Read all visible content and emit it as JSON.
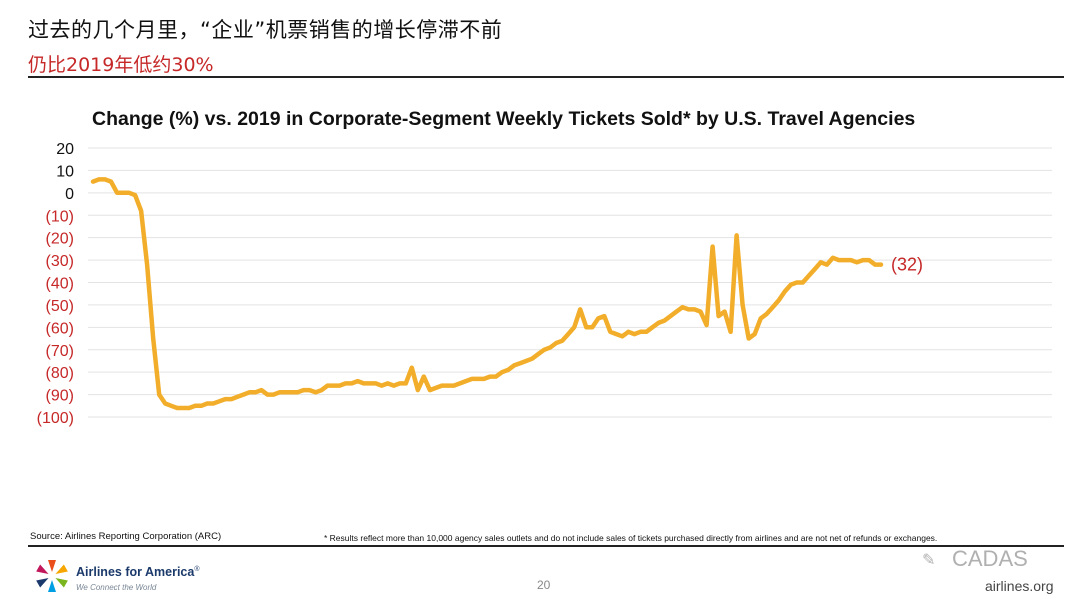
{
  "header": {
    "title": "过去的几个月里，“企业”机票销售的增长停滞不前",
    "subtitle": "仍比2019年低约30%"
  },
  "colors": {
    "line": "#f2ae2a",
    "negative_label": "#c62828",
    "grid": "#e3e3e3"
  },
  "chart_data": {
    "type": "line",
    "title": "Change (%) vs. 2019 in Corporate-Segment Weekly Tickets Sold* by U.S. Travel Agencies",
    "xlabel": "",
    "ylabel": "",
    "ylim": [
      -100,
      20
    ],
    "y_ticks": [
      {
        "value": 20,
        "label": "20"
      },
      {
        "value": 10,
        "label": "10"
      },
      {
        "value": 0,
        "label": "0"
      },
      {
        "value": -10,
        "label": "(10)"
      },
      {
        "value": -20,
        "label": "(20)"
      },
      {
        "value": -30,
        "label": "(30)"
      },
      {
        "value": -40,
        "label": "(40)"
      },
      {
        "value": -50,
        "label": "(50)"
      },
      {
        "value": -60,
        "label": "(60)"
      },
      {
        "value": -70,
        "label": "(70)"
      },
      {
        "value": -80,
        "label": "(80)"
      },
      {
        "value": -90,
        "label": "(90)"
      },
      {
        "value": -100,
        "label": "(100)"
      }
    ],
    "grid": true,
    "end_label": "(32)",
    "series": [
      {
        "values": [
          5,
          6,
          6,
          5,
          0,
          0,
          0,
          -1,
          -8,
          -32,
          -65,
          -90,
          -94,
          -95,
          -96,
          -96,
          -96,
          -95,
          -95,
          -94,
          -94,
          -93,
          -92,
          -92,
          -91,
          -90,
          -89,
          -89,
          -88,
          -90,
          -90,
          -89,
          -89,
          -89,
          -89,
          -88,
          -88,
          -89,
          -88,
          -86,
          -86,
          -86,
          -85,
          -85,
          -84,
          -85,
          -85,
          -85,
          -86,
          -85,
          -86,
          -85,
          -85,
          -78,
          -88,
          -82,
          -88,
          -87,
          -86,
          -86,
          -86,
          -85,
          -84,
          -83,
          -83,
          -83,
          -82,
          -82,
          -80,
          -79,
          -77,
          -76,
          -75,
          -74,
          -72,
          -70,
          -69,
          -67,
          -66,
          -63,
          -60,
          -52,
          -60,
          -60,
          -56,
          -55,
          -62,
          -63,
          -64,
          -62,
          -63,
          -62,
          -62,
          -60,
          -58,
          -57,
          -55,
          -53,
          -51,
          -52,
          -52,
          -53,
          -59,
          -24,
          -55,
          -53,
          -62,
          -19,
          -50,
          -65,
          -63,
          -56,
          -54,
          -51,
          -48,
          -44,
          -41,
          -40,
          -40,
          -37,
          -34,
          -31,
          -32,
          -29,
          -30,
          -30,
          -30,
          -31,
          -30,
          -30,
          -32,
          -32
        ]
      }
    ]
  },
  "footer": {
    "source": "Source: Airlines Reporting Corporation (ARC)",
    "footnote": "* Results reflect more than 10,000 agency sales outlets and do not include sales of tickets purchased directly from airlines and are not net of refunds or exchanges.",
    "brand": "Airlines for America",
    "brand_mark": "®",
    "tagline": "We Connect the World",
    "page_number": "20",
    "watermark": "CADAS",
    "site": "airlines.org"
  }
}
